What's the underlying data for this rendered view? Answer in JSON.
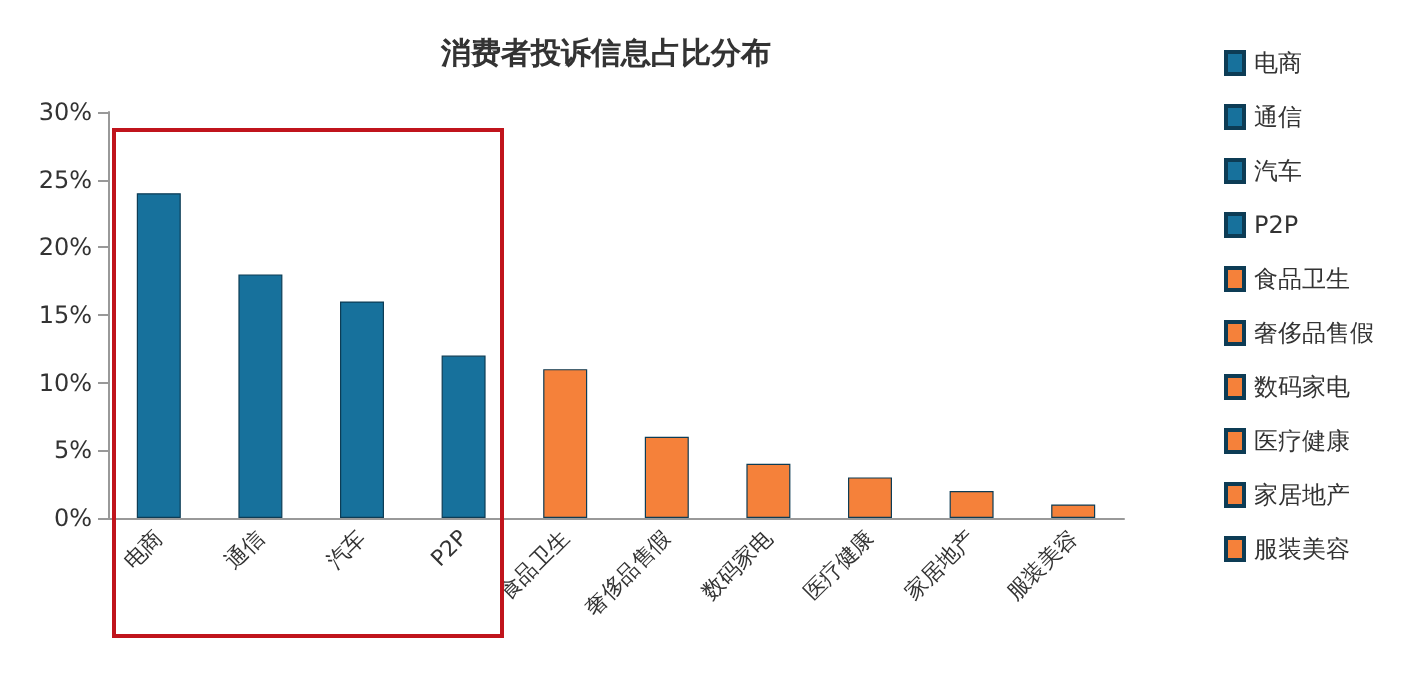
{
  "chart_data": {
    "type": "bar",
    "title": "消费者投诉信息占比分布",
    "categories": [
      "电商",
      "通信",
      "汽车",
      "P2P",
      "食品卫生",
      "奢侈品售假",
      "数码家电",
      "医疗健康",
      "家居地产",
      "服装美容"
    ],
    "series": [
      {
        "name": "电商",
        "color": "#17719c",
        "values": [
          24,
          null,
          null,
          null,
          null,
          null,
          null,
          null,
          null,
          null
        ]
      },
      {
        "name": "通信",
        "color": "#17719c",
        "values": [
          null,
          18,
          null,
          null,
          null,
          null,
          null,
          null,
          null,
          null
        ]
      },
      {
        "name": "汽车",
        "color": "#17719c",
        "values": [
          null,
          null,
          16,
          null,
          null,
          null,
          null,
          null,
          null,
          null
        ]
      },
      {
        "name": "P2P",
        "color": "#17719c",
        "values": [
          null,
          null,
          null,
          12,
          null,
          null,
          null,
          null,
          null,
          null
        ]
      },
      {
        "name": "食品卫生",
        "color": "#f5813a",
        "values": [
          null,
          null,
          null,
          null,
          11,
          null,
          null,
          null,
          null,
          null
        ]
      },
      {
        "name": "奢侈品售假",
        "color": "#f5813a",
        "values": [
          null,
          null,
          null,
          null,
          null,
          6,
          null,
          null,
          null,
          null
        ]
      },
      {
        "name": "数码家电",
        "color": "#f5813a",
        "values": [
          null,
          null,
          null,
          null,
          null,
          null,
          4,
          null,
          null,
          null
        ]
      },
      {
        "name": "医疗健康",
        "color": "#f5813a",
        "values": [
          null,
          null,
          null,
          null,
          null,
          null,
          null,
          3,
          null,
          null
        ]
      },
      {
        "name": "家居地产",
        "color": "#f5813a",
        "values": [
          null,
          null,
          null,
          null,
          null,
          null,
          null,
          null,
          2,
          null
        ]
      },
      {
        "name": "服装美容",
        "color": "#f5813a",
        "values": [
          null,
          null,
          null,
          null,
          null,
          null,
          null,
          null,
          null,
          1
        ]
      }
    ],
    "ylim": [
      0,
      30
    ],
    "yticks": [
      {
        "value": 0,
        "label": "0%"
      },
      {
        "value": 5,
        "label": "5%"
      },
      {
        "value": 10,
        "label": "10%"
      },
      {
        "value": 15,
        "label": "15%"
      },
      {
        "value": 20,
        "label": "20%"
      },
      {
        "value": 25,
        "label": "25%"
      },
      {
        "value": 30,
        "label": "30%"
      }
    ],
    "grid": false,
    "legend": "right"
  }
}
